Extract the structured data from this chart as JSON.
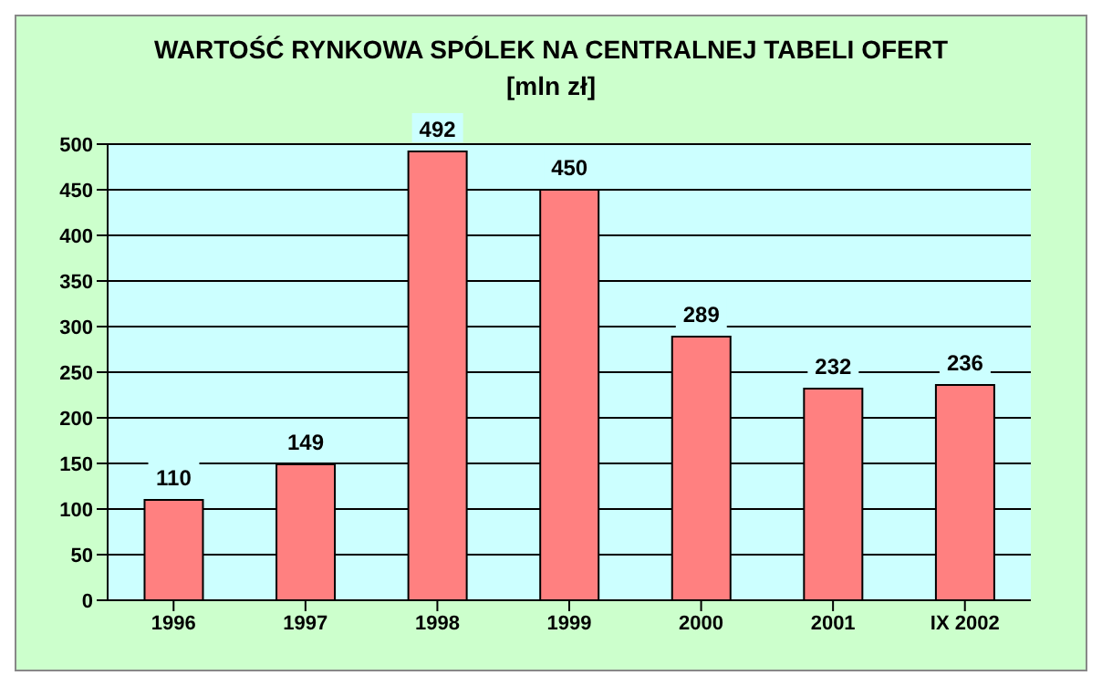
{
  "chart_data": {
    "type": "bar",
    "title": "WARTOŚĆ RYNKOWA SPÓLEK NA CENTRALNEJ TABELI OFERT",
    "subtitle": "[mln zł]",
    "categories": [
      "1996",
      "1997",
      "1998",
      "1999",
      "2000",
      "2001",
      "IX 2002"
    ],
    "values": [
      110,
      149,
      492,
      450,
      289,
      232,
      236
    ],
    "color": "#ff8080",
    "ylim": [
      0,
      500
    ],
    "yticks": [
      0,
      50,
      100,
      150,
      200,
      250,
      300,
      350,
      400,
      450,
      500
    ],
    "grid": "y",
    "data_labels": true
  }
}
